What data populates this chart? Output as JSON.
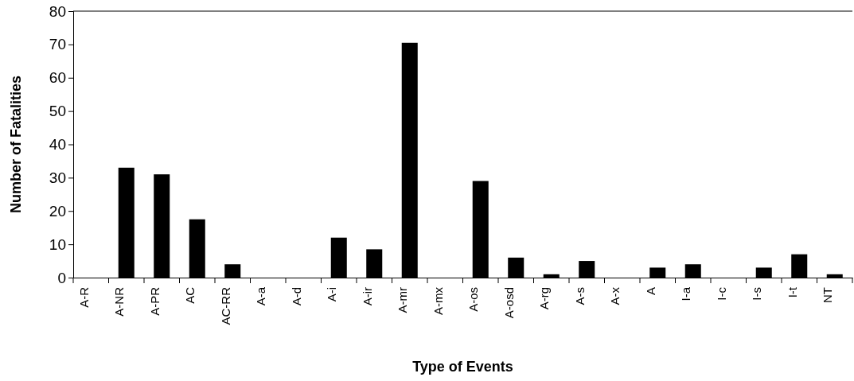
{
  "chart_data": {
    "type": "bar",
    "xlabel": "Type of Events",
    "ylabel": "Number of Fatalities",
    "categories": [
      "A-R",
      "A-NR",
      "A-PR",
      "AC",
      "AC-RR",
      "A-a",
      "A-d",
      "A-i",
      "A-ir",
      "A-mr",
      "A-mx",
      "A-os",
      "A-osd",
      "A-rg",
      "A-s",
      "A-x",
      "A",
      "I-a",
      "I-c",
      "I-s",
      "I-t",
      "NT"
    ],
    "values": [
      0,
      33,
      31,
      17.5,
      4,
      0,
      0,
      12,
      8.5,
      70.5,
      0,
      29,
      6,
      1,
      5,
      0,
      3,
      4,
      0,
      3,
      7,
      1
    ],
    "color": "#000000",
    "ylim": [
      0,
      80
    ],
    "yticks": [
      0,
      10,
      20,
      30,
      40,
      50,
      60,
      70,
      80
    ],
    "grid": false,
    "legend": false
  }
}
